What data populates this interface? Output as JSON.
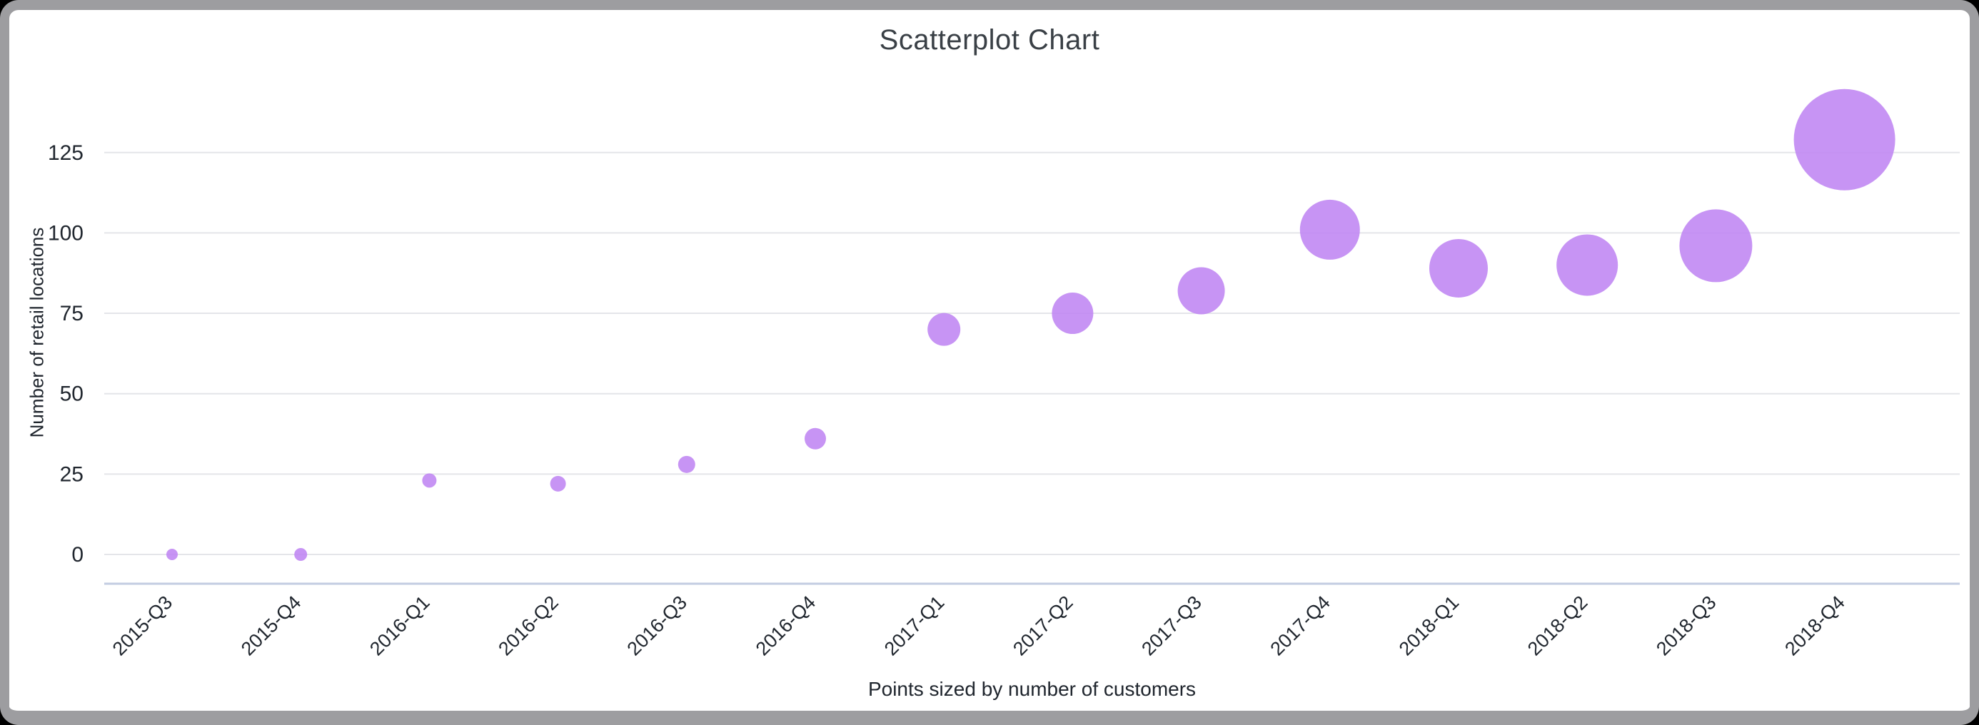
{
  "chart_data": {
    "type": "scatter",
    "title": "Scatterplot Chart",
    "ylabel": "Number of retail locations",
    "xlabel": "",
    "caption": "Points sized by number of customers",
    "categories": [
      "2015-Q3",
      "2015-Q4",
      "2016-Q1",
      "2016-Q2",
      "2016-Q3",
      "2016-Q4",
      "2017-Q1",
      "2017-Q2",
      "2017-Q3",
      "2017-Q4",
      "2018-Q1",
      "2018-Q2",
      "2018-Q3",
      "2018-Q4"
    ],
    "series": [
      {
        "name": "Number of retail locations",
        "values": [
          0,
          0,
          23,
          22,
          28,
          36,
          70,
          75,
          82,
          101,
          89,
          90,
          96,
          129
        ],
        "point_radius_px": [
          8,
          9,
          10,
          11,
          12,
          15,
          23,
          29,
          33,
          42,
          41,
          43,
          51,
          71
        ]
      }
    ],
    "yticks": [
      0,
      25,
      50,
      75,
      100,
      125
    ],
    "ylim": [
      0,
      140
    ],
    "grid": "horizontal-only",
    "legend": "none",
    "point_size_meaning": "Points sized by number of customers",
    "colors": {
      "point": "#bf85f2",
      "point_opacity": 0.88,
      "gridline": "#e4e5e9",
      "axis_line": "#c3cce2",
      "tick_text": "#20262e",
      "title_text": "#3a4046"
    }
  }
}
